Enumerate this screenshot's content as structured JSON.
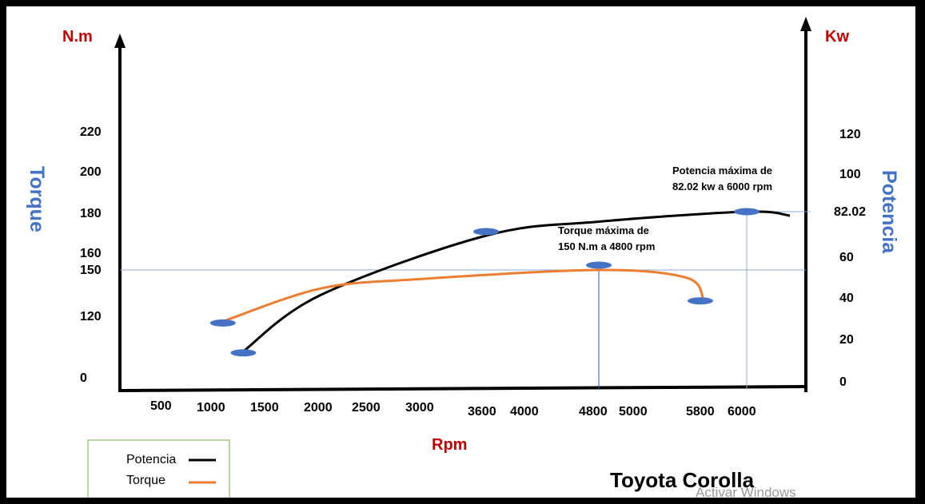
{
  "chart_data": {
    "type": "line",
    "title": "Toyota Corolla",
    "xlabel": "Rpm",
    "y_left_unit": "N.m",
    "y_right_unit": "Kw",
    "y_left_label": "Torque",
    "y_right_label": "Potencia",
    "x_ticks": [
      "500",
      "1000",
      "1500",
      "2000",
      "2500",
      "3000",
      "3600",
      "4000",
      "4800",
      "5000",
      "5800",
      "6000"
    ],
    "y_left_ticks": [
      "220",
      "200",
      "180",
      "160",
      "150",
      "120",
      "0"
    ],
    "y_right_ticks": [
      "120",
      "100",
      "82.02",
      "60",
      "40",
      "20",
      "0"
    ],
    "series": [
      {
        "name": "Potencia",
        "color": "#000000",
        "points": [
          [
            1300,
            17
          ],
          [
            2000,
            41
          ],
          [
            3600,
            70
          ],
          [
            4800,
            77
          ],
          [
            6000,
            82.02
          ],
          [
            6400,
            80
          ]
        ]
      },
      {
        "name": "Torque",
        "color": "#ed7d31",
        "points": [
          [
            1100,
            118
          ],
          [
            2000,
            138
          ],
          [
            3000,
            144
          ],
          [
            4800,
            150
          ],
          [
            5600,
            145
          ],
          [
            5800,
            131
          ]
        ]
      }
    ],
    "markers_rpm": [
      1100,
      1300,
      3600,
      4800,
      5800,
      6000
    ],
    "annotations": [
      {
        "lines": [
          "Potencia máxima de",
          "82.02 kw a 6000 rpm"
        ]
      },
      {
        "lines": [
          "Torque máxima de",
          "150 N.m a 4800 rpm"
        ]
      }
    ],
    "legend": {
      "placement": "bottom-left",
      "items": [
        {
          "label": "Potencia",
          "color": "#000000"
        },
        {
          "label": "Torque",
          "color": "#ed7d31"
        }
      ]
    }
  },
  "watermark": "Activar Windows"
}
